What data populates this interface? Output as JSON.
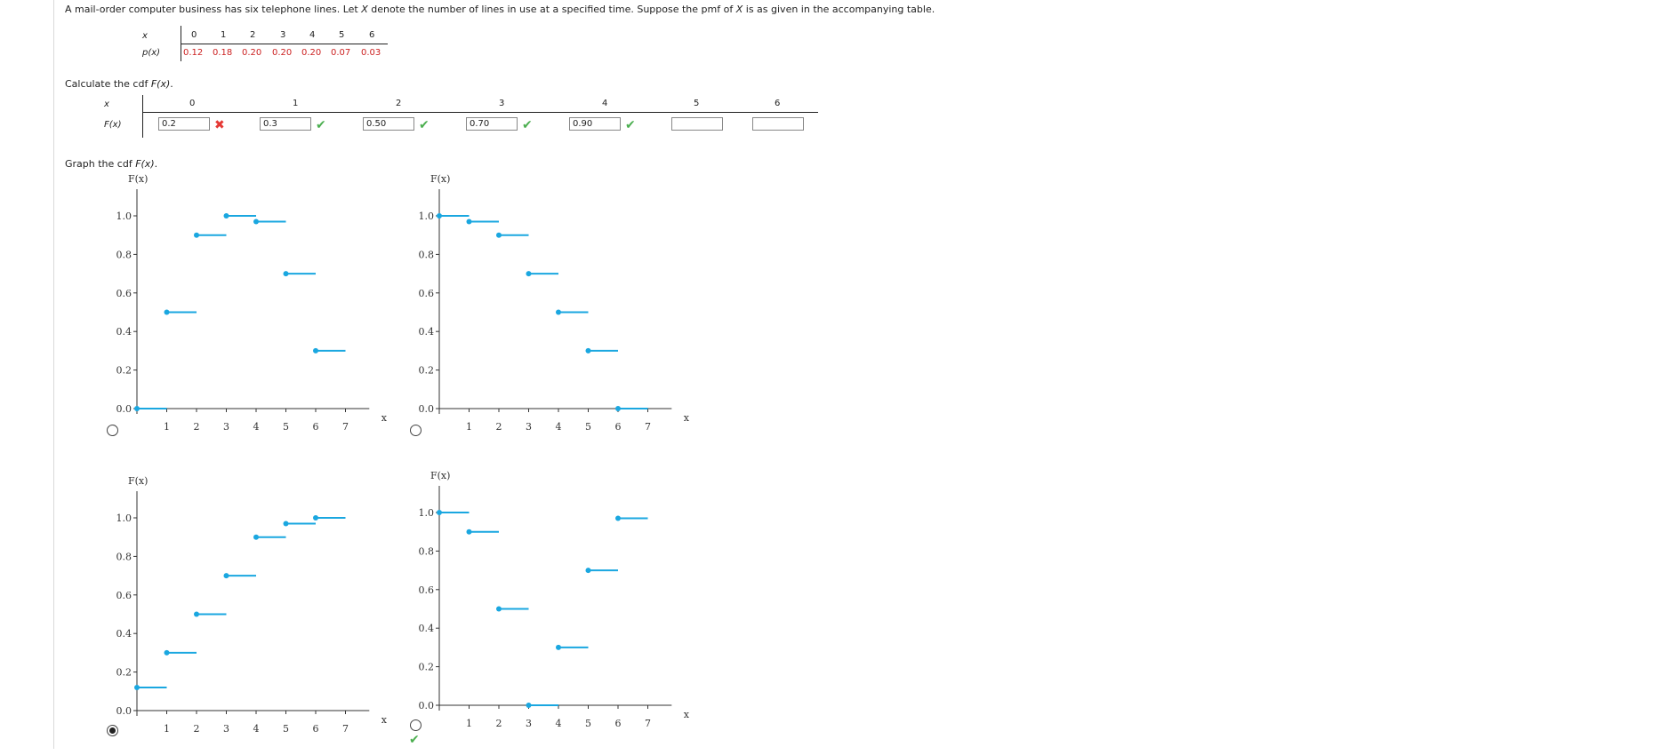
{
  "question": {
    "prefix": "A mail-order computer business has six telephone lines. Let ",
    "var": "X",
    "middle": " denote the number of lines in use at a specified time. Suppose the pmf of ",
    "var2": "X",
    "suffix": " is as given in the accompanying table."
  },
  "pmf_table": {
    "x_label": "x",
    "p_label": "p(x)",
    "x_values": [
      "0",
      "1",
      "2",
      "3",
      "4",
      "5",
      "6"
    ],
    "p_values": [
      "0.12",
      "0.18",
      "0.20",
      "0.20",
      "0.20",
      "0.07",
      "0.03"
    ]
  },
  "cdf_prompt": {
    "text": "Calculate the cdf ",
    "func": "F(x)",
    "end": "."
  },
  "cdf_table": {
    "x_label": "x",
    "f_label": "F(x)",
    "x_values": [
      "0",
      "1",
      "2",
      "3",
      "4",
      "5",
      "6"
    ],
    "inputs": [
      {
        "value": "0.2",
        "status": "incorrect"
      },
      {
        "value": "0.3",
        "status": "correct"
      },
      {
        "value": "0.50",
        "status": "correct"
      },
      {
        "value": "0.70",
        "status": "correct"
      },
      {
        "value": "0.90",
        "status": "correct"
      },
      {
        "value": "",
        "status": ""
      },
      {
        "value": "",
        "status": ""
      }
    ]
  },
  "graph_prompt": {
    "text": "Graph the cdf ",
    "func": "F(x)",
    "end": "."
  },
  "graphs": {
    "ylabel": "F(x)",
    "xlabel": "x",
    "yticks": [
      "0.0",
      "0.2",
      "0.4",
      "0.6",
      "0.8",
      "1.0"
    ],
    "xticks": [
      "1",
      "2",
      "3",
      "4",
      "5",
      "6",
      "7"
    ],
    "line_color": "#1aa7e0",
    "options": [
      {
        "id": "A",
        "selected": false,
        "correct_mark": false,
        "steps": [
          [
            0,
            0.0
          ],
          [
            1,
            0.5
          ],
          [
            2,
            0.9
          ],
          [
            3,
            1.0
          ],
          [
            4,
            0.97
          ],
          [
            5,
            0.7
          ],
          [
            6,
            0.3
          ]
        ]
      },
      {
        "id": "B",
        "selected": false,
        "correct_mark": false,
        "steps": [
          [
            0,
            1.0
          ],
          [
            1,
            0.97
          ],
          [
            2,
            0.9
          ],
          [
            3,
            0.7
          ],
          [
            4,
            0.5
          ],
          [
            5,
            0.3
          ],
          [
            6,
            0.0
          ]
        ]
      },
      {
        "id": "C",
        "selected": true,
        "correct_mark": false,
        "steps": [
          [
            0,
            0.12
          ],
          [
            1,
            0.3
          ],
          [
            2,
            0.5
          ],
          [
            3,
            0.7
          ],
          [
            4,
            0.9
          ],
          [
            5,
            0.97
          ],
          [
            6,
            1.0
          ]
        ]
      },
      {
        "id": "D",
        "selected": false,
        "correct_mark": true,
        "steps": [
          [
            0,
            1.0
          ],
          [
            1,
            0.9
          ],
          [
            2,
            0.5
          ],
          [
            3,
            0.0
          ],
          [
            4,
            0.3
          ],
          [
            5,
            0.7
          ],
          [
            6,
            0.97
          ]
        ]
      }
    ]
  }
}
